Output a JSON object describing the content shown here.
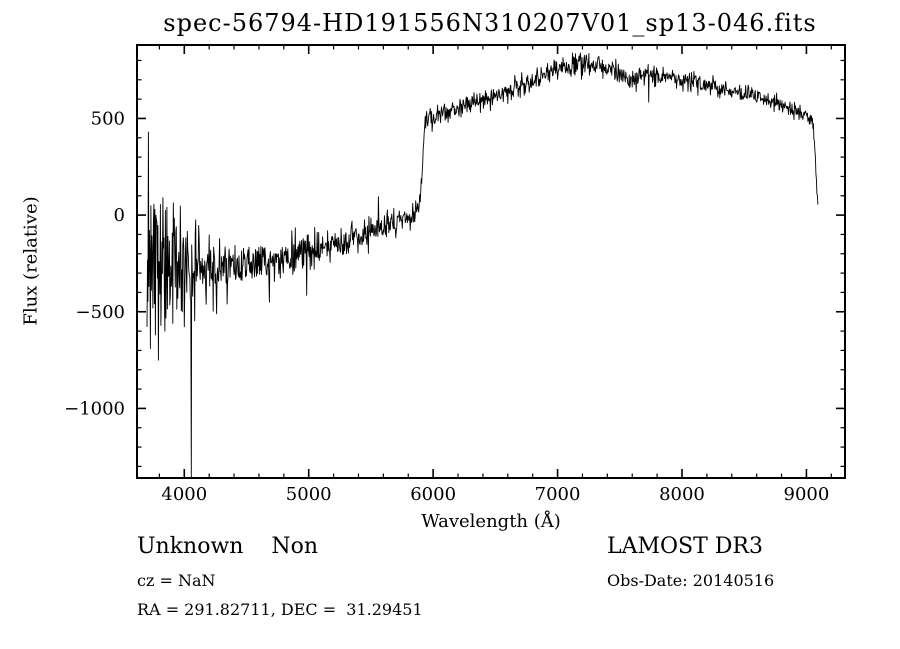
{
  "title": "spec-56794-HD191556N310207V01_sp13-046.fits",
  "chart_data": {
    "type": "line",
    "title": "spec-56794-HD191556N310207V01_sp13-046.fits",
    "xlabel": "Wavelength (Å)",
    "ylabel": "Flux (relative)",
    "legend": "none",
    "grid": false,
    "line_color": "#000000",
    "frame_color": "#000000",
    "xlim": [
      3620,
      9310
    ],
    "ylim": [
      -1360,
      880
    ],
    "x_ticks": [
      {
        "value": 4000,
        "label": "4000"
      },
      {
        "value": 5000,
        "label": "5000"
      },
      {
        "value": 6000,
        "label": "6000"
      },
      {
        "value": 7000,
        "label": "7000"
      },
      {
        "value": 8000,
        "label": "8000"
      },
      {
        "value": 9000,
        "label": "9000"
      }
    ],
    "y_ticks": [
      {
        "value": 500,
        "label": "500"
      },
      {
        "value": 0,
        "label": "0"
      },
      {
        "value": -500,
        "label": "−500"
      },
      {
        "value": -1000,
        "label": "−1000"
      }
    ],
    "x_minor_step": 200,
    "y_minor_step": 100,
    "spectrum": {
      "series_name": "flux-vs-wavelength",
      "x_start": 3700,
      "x_end": 9095,
      "sample_step": 4,
      "noise_seed": 20140516,
      "baseline": [
        [
          3700,
          -60
        ],
        [
          3720,
          -140
        ],
        [
          3750,
          -200
        ],
        [
          3800,
          -235
        ],
        [
          3850,
          -250
        ],
        [
          3900,
          -260
        ],
        [
          3950,
          -265
        ],
        [
          4000,
          -268
        ],
        [
          4060,
          -275
        ],
        [
          4120,
          -278
        ],
        [
          4200,
          -272
        ],
        [
          4300,
          -265
        ],
        [
          4400,
          -258
        ],
        [
          4500,
          -245
        ],
        [
          4600,
          -232
        ],
        [
          4700,
          -225
        ],
        [
          4800,
          -214
        ],
        [
          4900,
          -200
        ],
        [
          5000,
          -185
        ],
        [
          5100,
          -168
        ],
        [
          5200,
          -150
        ],
        [
          5300,
          -130
        ],
        [
          5400,
          -108
        ],
        [
          5500,
          -85
        ],
        [
          5600,
          -60
        ],
        [
          5700,
          -38
        ],
        [
          5800,
          -15
        ],
        [
          5860,
          5
        ],
        [
          5895,
          60
        ],
        [
          5915,
          280
        ],
        [
          5935,
          470
        ],
        [
          5955,
          505
        ],
        [
          6000,
          520
        ],
        [
          6100,
          538
        ],
        [
          6200,
          555
        ],
        [
          6300,
          574
        ],
        [
          6400,
          594
        ],
        [
          6500,
          618
        ],
        [
          6600,
          643
        ],
        [
          6700,
          670
        ],
        [
          6800,
          698
        ],
        [
          6900,
          728
        ],
        [
          7000,
          752
        ],
        [
          7100,
          772
        ],
        [
          7200,
          783
        ],
        [
          7280,
          778
        ],
        [
          7350,
          768
        ],
        [
          7450,
          752
        ],
        [
          7540,
          738
        ],
        [
          7590,
          692
        ],
        [
          7620,
          700
        ],
        [
          7680,
          735
        ],
        [
          7750,
          730
        ],
        [
          7850,
          718
        ],
        [
          7950,
          706
        ],
        [
          8050,
          694
        ],
        [
          8150,
          680
        ],
        [
          8250,
          664
        ],
        [
          8350,
          652
        ],
        [
          8450,
          640
        ],
        [
          8550,
          628
        ],
        [
          8650,
          610
        ],
        [
          8750,
          580
        ],
        [
          8850,
          555
        ],
        [
          8950,
          528
        ],
        [
          9020,
          510
        ],
        [
          9050,
          480
        ],
        [
          9070,
          330
        ],
        [
          9085,
          120
        ],
        [
          9095,
          30
        ]
      ],
      "noise_sigma": [
        [
          3700,
          290
        ],
        [
          3760,
          280
        ],
        [
          3820,
          250
        ],
        [
          3880,
          215
        ],
        [
          3940,
          190
        ],
        [
          4000,
          165
        ],
        [
          4080,
          140
        ],
        [
          4160,
          120
        ],
        [
          4300,
          100
        ],
        [
          4450,
          85
        ],
        [
          4600,
          75
        ],
        [
          4800,
          65
        ],
        [
          5000,
          60
        ],
        [
          5250,
          55
        ],
        [
          5500,
          50
        ],
        [
          5750,
          46
        ],
        [
          5950,
          40
        ],
        [
          6100,
          34
        ],
        [
          6400,
          33
        ],
        [
          6700,
          36
        ],
        [
          7000,
          40
        ],
        [
          7200,
          44
        ],
        [
          7400,
          36
        ],
        [
          7600,
          34
        ],
        [
          7900,
          32
        ],
        [
          8200,
          31
        ],
        [
          8500,
          30
        ],
        [
          8800,
          27
        ],
        [
          9000,
          24
        ],
        [
          9095,
          18
        ]
      ],
      "spikes": [
        [
          3712,
          430
        ],
        [
          3728,
          -690
        ],
        [
          3748,
          -480
        ],
        [
          3768,
          -620
        ],
        [
          3792,
          -750
        ],
        [
          3816,
          -360
        ],
        [
          3844,
          -600
        ],
        [
          3876,
          -310
        ],
        [
          3908,
          -560
        ],
        [
          3948,
          -430
        ],
        [
          3984,
          -500
        ],
        [
          4056,
          -1360
        ],
        [
          4260,
          -510
        ],
        [
          4344,
          -460
        ],
        [
          4684,
          -450
        ],
        [
          4984,
          -415
        ],
        [
          5560,
          95
        ],
        [
          7144,
          835
        ],
        [
          7232,
          828
        ],
        [
          7732,
          585
        ]
      ]
    }
  },
  "annotations": {
    "class_label": "Unknown    Non",
    "survey": "LAMOST DR3",
    "cz": "cz = NaN",
    "obs_date": "Obs-Date: 20140516",
    "coords": "RA = 291.82711, DEC =  31.29451"
  }
}
